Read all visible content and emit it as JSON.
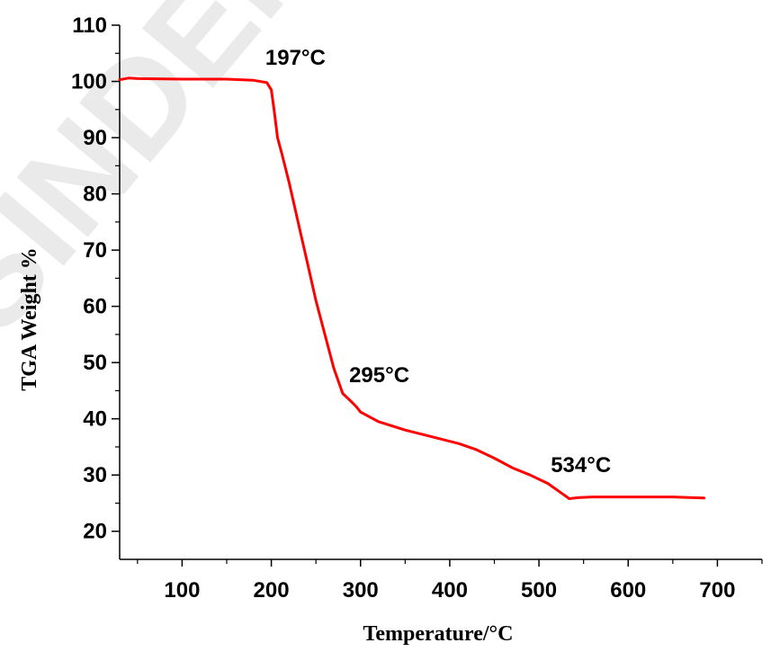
{
  "watermark": "SINDER P",
  "chart_data": {
    "type": "line",
    "title": "",
    "xlabel": "Temperature/°C",
    "ylabel": "TGA Weight %",
    "xlim": [
      30,
      750
    ],
    "ylim": [
      15,
      110
    ],
    "x_ticks": [
      100,
      200,
      300,
      400,
      500,
      600,
      700
    ],
    "y_ticks": [
      20,
      30,
      40,
      50,
      60,
      70,
      80,
      90,
      100,
      110
    ],
    "grid": false,
    "legend": "none",
    "series": [
      {
        "color": "#ff0000",
        "x": [
          30,
          40,
          50,
          100,
          150,
          180,
          195,
          200,
          203,
          207,
          212,
          220,
          230,
          240,
          250,
          260,
          270,
          280,
          290,
          295,
          300,
          320,
          350,
          380,
          410,
          430,
          450,
          470,
          490,
          510,
          525,
          534,
          545,
          560,
          600,
          650,
          685
        ],
        "y": [
          100.3,
          100.6,
          100.5,
          100.4,
          100.4,
          100.2,
          99.8,
          98.5,
          95.0,
          90.0,
          87.0,
          82.0,
          75.0,
          68.0,
          61.0,
          55.0,
          49.0,
          44.5,
          43.0,
          42.2,
          41.2,
          39.5,
          38.0,
          36.8,
          35.6,
          34.5,
          33.0,
          31.3,
          30.0,
          28.5,
          26.8,
          25.8,
          26.0,
          26.1,
          26.1,
          26.1,
          25.9
        ]
      }
    ],
    "annotations": [
      {
        "text": "197°C",
        "x": 227,
        "y": 103
      },
      {
        "text": "295°C",
        "x": 321,
        "y": 46.5
      },
      {
        "text": "534°C",
        "x": 547,
        "y": 30.5
      }
    ]
  }
}
